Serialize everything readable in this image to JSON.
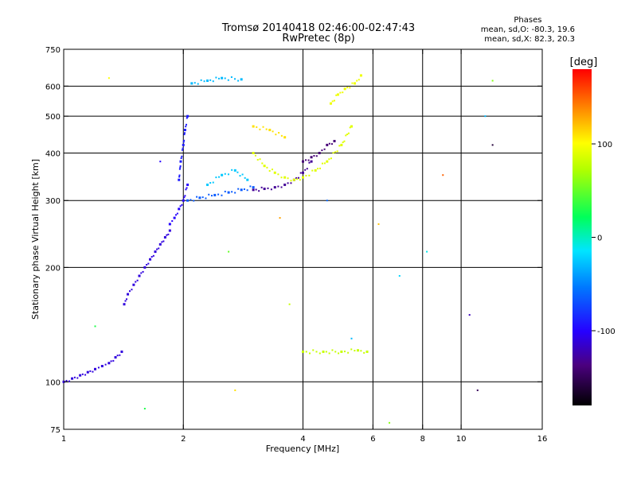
{
  "title_line1": "Tromsø 20140418 02:46:00-02:47:43",
  "title_line2": "RwPretec (8p)",
  "phases": {
    "heading": "Phases",
    "line_o": "mean, sd,O: -80.3, 19.6",
    "line_x": "mean, sd,X:  82.3, 20.3"
  },
  "colorbar": {
    "label": "[deg]",
    "range": [
      -180,
      180
    ],
    "ticks": [
      100,
      0,
      -100
    ],
    "tick_labels": [
      "100",
      "0",
      "-100"
    ]
  },
  "chart_data": {
    "type": "scatter",
    "xlabel": "Frequency [MHz]",
    "ylabel": "Stationary phase Virtual Height [km]",
    "xscale": "log",
    "yscale": "log",
    "xlim": [
      1,
      16
    ],
    "ylim": [
      75,
      750
    ],
    "xticks": [
      1,
      2,
      4,
      6,
      8,
      10,
      16
    ],
    "xtick_labels": [
      "1",
      "2",
      "4",
      "6",
      "8",
      "10",
      "16"
    ],
    "yticks": [
      75,
      100,
      200,
      300,
      400,
      500,
      600,
      750
    ],
    "ytick_labels": [
      "75",
      "100",
      "200",
      "300",
      "400",
      "500",
      "600",
      "750"
    ],
    "xgrid": [
      2,
      4,
      6,
      8,
      10
    ],
    "ygrid": [
      100,
      200,
      300,
      400,
      500,
      600
    ],
    "color_encodes": "phase [deg]",
    "traces": [
      {
        "f": [
          1.0,
          1.05,
          1.1,
          1.15,
          1.2,
          1.25,
          1.3,
          1.35,
          1.4
        ],
        "h": [
          100,
          102,
          104,
          106,
          108,
          110,
          112,
          116,
          120
        ],
        "phase": -110
      },
      {
        "f": [
          1.42,
          1.45,
          1.5,
          1.55,
          1.6,
          1.65,
          1.7,
          1.75,
          1.8,
          1.85
        ],
        "h": [
          160,
          170,
          180,
          190,
          200,
          210,
          220,
          230,
          240,
          250
        ],
        "phase": -110
      },
      {
        "f": [
          1.85,
          1.9,
          1.95,
          2.0,
          2.05
        ],
        "h": [
          260,
          270,
          285,
          300,
          330
        ],
        "phase": -100
      },
      {
        "f": [
          1.95,
          1.97,
          2.0,
          2.02,
          2.05
        ],
        "h": [
          340,
          380,
          420,
          460,
          500
        ],
        "phase": -90
      },
      {
        "f": [
          2.05,
          2.2,
          2.4,
          2.6,
          2.8,
          3.0
        ],
        "h": [
          300,
          305,
          310,
          315,
          320,
          325
        ],
        "phase": -65
      },
      {
        "f": [
          2.3,
          2.5,
          2.7,
          2.9
        ],
        "h": [
          330,
          350,
          360,
          340
        ],
        "phase": -25
      },
      {
        "f": [
          2.1,
          2.3,
          2.5,
          2.8
        ],
        "h": [
          610,
          620,
          630,
          625
        ],
        "phase": -30
      },
      {
        "f": [
          3.0,
          3.2,
          3.4,
          3.6,
          3.8,
          4.0,
          4.2
        ],
        "h": [
          320,
          322,
          325,
          330,
          340,
          355,
          380
        ],
        "phase": -130
      },
      {
        "f": [
          4.0,
          4.2,
          4.4,
          4.6,
          4.8
        ],
        "h": [
          380,
          390,
          400,
          420,
          430
        ],
        "phase": -140
      },
      {
        "f": [
          3.0,
          3.2,
          3.4,
          3.6,
          3.8,
          4.0,
          4.3,
          4.6,
          5.0,
          5.3
        ],
        "h": [
          400,
          370,
          355,
          345,
          340,
          345,
          360,
          380,
          420,
          470
        ],
        "phase": 90
      },
      {
        "f": [
          3.0,
          3.3,
          3.6
        ],
        "h": [
          470,
          460,
          440
        ],
        "phase": 110
      },
      {
        "f": [
          4.0,
          4.5,
          5.0,
          5.5,
          5.8
        ],
        "h": [
          120,
          120,
          120,
          121,
          120
        ],
        "phase": 80
      },
      {
        "f": [
          4.7,
          4.9,
          5.1,
          5.4,
          5.6
        ],
        "h": [
          540,
          570,
          590,
          610,
          640
        ],
        "phase": 95
      }
    ],
    "sparse_points": [
      {
        "f": 1.3,
        "h": 630,
        "phase": 100
      },
      {
        "f": 1.75,
        "h": 380,
        "phase": -100
      },
      {
        "f": 1.2,
        "h": 140,
        "phase": 30
      },
      {
        "f": 2.6,
        "h": 220,
        "phase": 50
      },
      {
        "f": 3.5,
        "h": 270,
        "phase": 130
      },
      {
        "f": 4.6,
        "h": 300,
        "phase": -60
      },
      {
        "f": 6.2,
        "h": 260,
        "phase": 120
      },
      {
        "f": 7.0,
        "h": 190,
        "phase": -20
      },
      {
        "f": 9.0,
        "h": 350,
        "phase": 150
      },
      {
        "f": 10.5,
        "h": 150,
        "phase": -120
      },
      {
        "f": 11.5,
        "h": 500,
        "phase": -30
      },
      {
        "f": 12.0,
        "h": 620,
        "phase": 60
      },
      {
        "f": 12.0,
        "h": 420,
        "phase": -160
      },
      {
        "f": 11.0,
        "h": 95,
        "phase": -150
      },
      {
        "f": 8.2,
        "h": 220,
        "phase": -10
      },
      {
        "f": 6.6,
        "h": 78,
        "phase": 60
      },
      {
        "f": 2.7,
        "h": 95,
        "phase": 110
      },
      {
        "f": 1.6,
        "h": 85,
        "phase": 30
      },
      {
        "f": 5.3,
        "h": 130,
        "phase": -30
      },
      {
        "f": 3.7,
        "h": 160,
        "phase": 80
      }
    ]
  }
}
